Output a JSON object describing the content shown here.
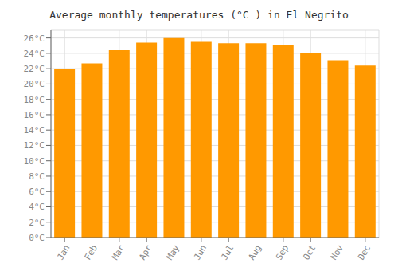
{
  "chart_data": {
    "type": "bar",
    "title": "Average monthly temperatures (°C ) in El Negrito",
    "categories": [
      "Jan",
      "Feb",
      "Mar",
      "Apr",
      "May",
      "Jun",
      "Jul",
      "Aug",
      "Sep",
      "Oct",
      "Nov",
      "Dec"
    ],
    "values": [
      22.0,
      22.7,
      24.4,
      25.4,
      26.0,
      25.5,
      25.3,
      25.3,
      25.1,
      24.1,
      23.1,
      22.4
    ],
    "color": "#FF9900",
    "ylim": [
      0,
      27
    ],
    "yticks": [
      {
        "value": 0,
        "label": "0°C"
      },
      {
        "value": 2,
        "label": "2°C"
      },
      {
        "value": 4,
        "label": "4°C"
      },
      {
        "value": 6,
        "label": "6°C"
      },
      {
        "value": 8,
        "label": "8°C"
      },
      {
        "value": 10,
        "label": "10°C"
      },
      {
        "value": 12,
        "label": "12°C"
      },
      {
        "value": 14,
        "label": "14°C"
      },
      {
        "value": 16,
        "label": "16°C"
      },
      {
        "value": 18,
        "label": "18°C"
      },
      {
        "value": 20,
        "label": "20°C"
      },
      {
        "value": 22,
        "label": "22°C"
      },
      {
        "value": 24,
        "label": "24°C"
      },
      {
        "value": 26,
        "label": "26°C"
      }
    ],
    "grid": true
  }
}
